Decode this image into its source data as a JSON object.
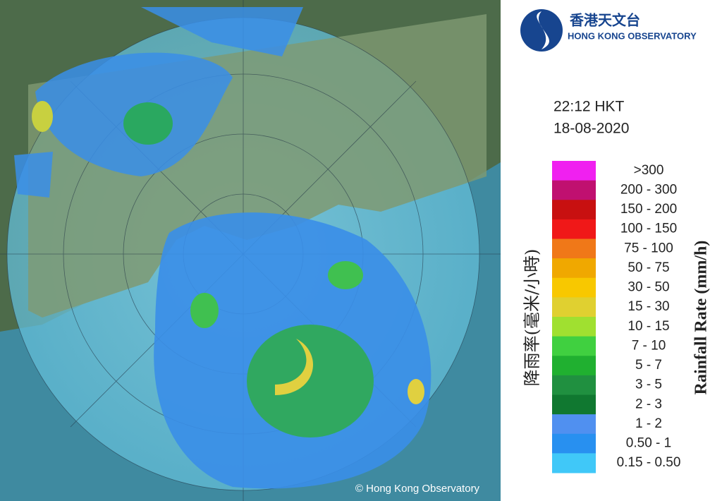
{
  "logo": {
    "chinese": "香港天文台",
    "english": "HONG KONG OBSERVATORY"
  },
  "time": "22:12 HKT",
  "date": "18-08-2020",
  "legend": {
    "title_chinese": "降雨率(毫米/小時)",
    "title_english": "Rainfall Rate (mm/h)",
    "items": [
      {
        "label": ">300",
        "color": "#f020f0"
      },
      {
        "label": "200 - 300",
        "color": "#c01070"
      },
      {
        "label": "150 - 200",
        "color": "#c81010"
      },
      {
        "label": "100 - 150",
        "color": "#f01818"
      },
      {
        "label": "75 - 100",
        "color": "#f07818"
      },
      {
        "label": "50 - 75",
        "color": "#f0a800"
      },
      {
        "label": "30 - 50",
        "color": "#f8c800"
      },
      {
        "label": "15 - 30",
        "color": "#e0d030"
      },
      {
        "label": "10 - 15",
        "color": "#a0e030"
      },
      {
        "label": "7 - 10",
        "color": "#40d040"
      },
      {
        "label": "5 - 7",
        "color": "#20b030"
      },
      {
        "label": "3 - 5",
        "color": "#209040"
      },
      {
        "label": "2 - 3",
        "color": "#107830"
      },
      {
        "label": "1 - 2",
        "color": "#5090f0"
      },
      {
        "label": "0.50 - 1",
        "color": "#2890f0"
      },
      {
        "label": "0.15 - 0.50",
        "color": "#40c8f8"
      }
    ]
  },
  "copyright": "© Hong Kong Observatory"
}
